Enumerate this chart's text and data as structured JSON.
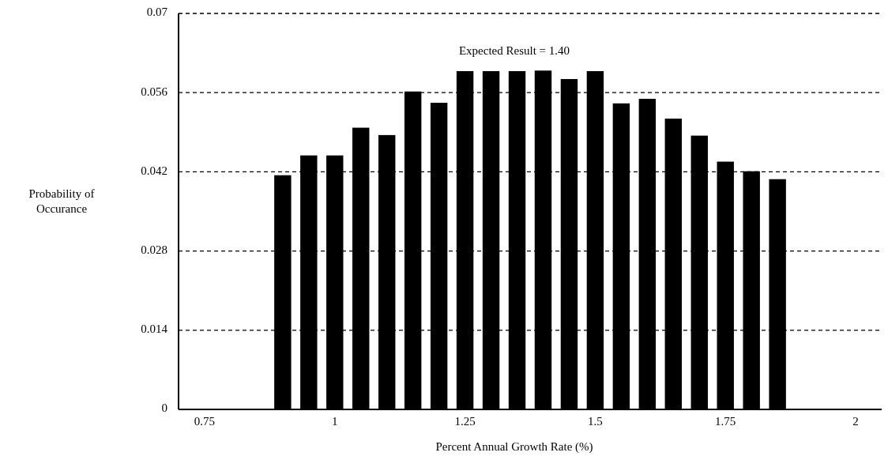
{
  "chart_data": {
    "type": "bar",
    "xlabel": "Percent Annual Growth Rate (%)",
    "ylabel": "Probability of Occurance",
    "annotations": [
      "Expected Result = 1.40"
    ],
    "x": [
      0.9,
      0.95,
      1.0,
      1.05,
      1.1,
      1.15,
      1.2,
      1.25,
      1.3,
      1.35,
      1.4,
      1.45,
      1.5,
      1.55,
      1.6,
      1.65,
      1.7,
      1.75,
      1.8,
      1.85
    ],
    "values": [
      0.0414,
      0.0449,
      0.0449,
      0.0498,
      0.0485,
      0.0562,
      0.0542,
      0.0598,
      0.0598,
      0.0598,
      0.0599,
      0.0584,
      0.0598,
      0.0541,
      0.0549,
      0.0514,
      0.0484,
      0.0438,
      0.0421,
      0.0407
    ],
    "color": "#000000",
    "xlim": [
      0.7,
      2.05
    ],
    "xticks": [
      0.75,
      1,
      1.25,
      1.5,
      1.75,
      2
    ],
    "ylim": [
      0,
      0.07
    ],
    "yticks": [
      0,
      0.014,
      0.028,
      0.042,
      0.056,
      0.07
    ],
    "grid": "y",
    "line_style": "dashed"
  }
}
